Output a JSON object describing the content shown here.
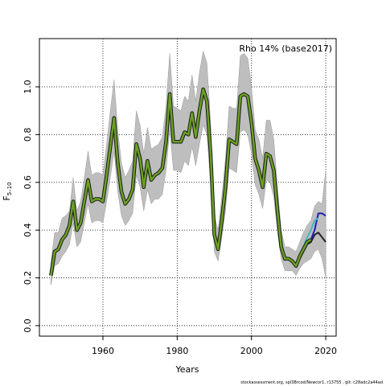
{
  "chart_data": {
    "type": "line",
    "annotation": "Rho 14% (base2017)",
    "xlabel": "Years",
    "ylabel": "F",
    "ylabel_sub": "5–10",
    "footer": "stockassessment.org, spl3Brcod/Newcor1, r13755 , git: c28adc2a44ad",
    "xlim": [
      1942.9,
      2022.8
    ],
    "ylim": [
      -0.044,
      1.202
    ],
    "xticks": [
      1960,
      1980,
      2000,
      2020
    ],
    "yticks": [
      {
        "value": 0,
        "label": "0.0"
      },
      0.2,
      0.4,
      0.6,
      0.8,
      {
        "value": 1,
        "label": "1.0"
      }
    ],
    "grid": true,
    "band_color": "#bebebe",
    "x": [
      1946,
      1947,
      1948,
      1949,
      1950,
      1951,
      1952,
      1953,
      1954,
      1955,
      1956,
      1957,
      1958,
      1959,
      1960,
      1961,
      1962,
      1963,
      1964,
      1965,
      1966,
      1967,
      1968,
      1969,
      1970,
      1971,
      1972,
      1973,
      1974,
      1975,
      1976,
      1977,
      1978,
      1979,
      1980,
      1981,
      1982,
      1983,
      1984,
      1985,
      1986,
      1987,
      1988,
      1989,
      1990,
      1991,
      1992,
      1993,
      1994,
      1995,
      1996,
      1997,
      1998,
      1999,
      2000,
      2001,
      2002,
      2003,
      2004,
      2005,
      2006,
      2007,
      2008,
      2009,
      2010,
      2011,
      2012,
      2013,
      2014,
      2015,
      2016,
      2017,
      2018,
      2019,
      2020
    ],
    "upper": [
      0.26,
      0.39,
      0.39,
      0.45,
      0.46,
      0.48,
      0.62,
      0.48,
      0.52,
      0.62,
      0.73,
      0.63,
      0.64,
      0.64,
      0.63,
      0.76,
      0.9,
      1.03,
      0.82,
      0.68,
      0.62,
      0.65,
      0.69,
      0.9,
      0.84,
      0.72,
      0.83,
      0.74,
      0.75,
      0.76,
      0.79,
      0.92,
      1.14,
      0.92,
      0.91,
      0.9,
      0.96,
      0.94,
      1.05,
      0.94,
      1.06,
      1.15,
      1.1,
      0.85,
      0.46,
      0.4,
      0.54,
      0.7,
      0.92,
      0.91,
      0.91,
      1.13,
      1.14,
      1.12,
      1.0,
      0.82,
      0.78,
      0.7,
      0.86,
      0.86,
      0.78,
      0.58,
      0.4,
      0.33,
      0.33,
      0.32,
      0.31,
      0.35,
      0.39,
      0.42,
      0.44,
      0.5,
      0.52,
      0.51,
      0.65
    ],
    "lower": [
      0.17,
      0.25,
      0.26,
      0.29,
      0.31,
      0.34,
      0.43,
      0.33,
      0.35,
      0.43,
      0.51,
      0.43,
      0.44,
      0.44,
      0.43,
      0.52,
      0.62,
      0.73,
      0.56,
      0.46,
      0.42,
      0.44,
      0.47,
      0.63,
      0.58,
      0.48,
      0.57,
      0.51,
      0.53,
      0.53,
      0.55,
      0.65,
      0.82,
      0.65,
      0.65,
      0.64,
      0.69,
      0.67,
      0.75,
      0.67,
      0.76,
      0.84,
      0.8,
      0.6,
      0.31,
      0.27,
      0.37,
      0.48,
      0.66,
      0.65,
      0.64,
      0.81,
      0.82,
      0.8,
      0.72,
      0.59,
      0.55,
      0.49,
      0.61,
      0.6,
      0.54,
      0.39,
      0.28,
      0.23,
      0.23,
      0.23,
      0.21,
      0.24,
      0.26,
      0.27,
      0.28,
      0.31,
      0.32,
      0.28,
      0.2
    ],
    "series": [
      {
        "color": "#222222",
        "values": [
          0.21,
          0.31,
          0.32,
          0.36,
          0.38,
          0.42,
          0.52,
          0.4,
          0.43,
          0.52,
          0.61,
          0.52,
          0.53,
          0.53,
          0.52,
          0.63,
          0.75,
          0.87,
          0.68,
          0.56,
          0.51,
          0.53,
          0.57,
          0.76,
          0.7,
          0.58,
          0.69,
          0.61,
          0.63,
          0.64,
          0.66,
          0.77,
          0.97,
          0.77,
          0.77,
          0.77,
          0.81,
          0.8,
          0.89,
          0.79,
          0.9,
          0.99,
          0.94,
          0.72,
          0.38,
          0.32,
          0.44,
          0.58,
          0.78,
          0.77,
          0.76,
          0.96,
          0.97,
          0.96,
          0.85,
          0.7,
          0.65,
          0.58,
          0.72,
          0.71,
          0.65,
          0.48,
          0.33,
          0.28,
          0.28,
          0.27,
          0.25,
          0.28,
          0.31,
          0.34,
          0.35,
          0.38,
          0.39,
          0.37,
          0.35
        ]
      },
      {
        "color": "#1f1fb4",
        "x": [
          2008,
          2009,
          2010,
          2011,
          2012,
          2013,
          2014,
          2015,
          2016,
          2017,
          2018,
          2019,
          2020
        ],
        "values": [
          0.33,
          0.28,
          0.28,
          0.27,
          0.25,
          0.29,
          0.32,
          0.35,
          0.36,
          0.4,
          0.47,
          0.47,
          0.46
        ]
      },
      {
        "color": "#41b6c4",
        "x": [
          2008,
          2009,
          2010,
          2011,
          2012,
          2013,
          2014,
          2015,
          2016,
          2017,
          2018
        ],
        "values": [
          0.33,
          0.29,
          0.28,
          0.27,
          0.26,
          0.3,
          0.33,
          0.37,
          0.4,
          0.44,
          0.45
        ]
      },
      {
        "color": "#6aa121",
        "x": [
          1946,
          1947,
          1948,
          1949,
          1950,
          1951,
          1952,
          1953,
          1954,
          1955,
          1956,
          1957,
          1958,
          1959,
          1960,
          1961,
          1962,
          1963,
          1964,
          1965,
          1966,
          1967,
          1968,
          1969,
          1970,
          1971,
          1972,
          1973,
          1974,
          1975,
          1976,
          1977,
          1978,
          1979,
          1980,
          1981,
          1982,
          1983,
          1984,
          1985,
          1986,
          1987,
          1988,
          1989,
          1990,
          1991,
          1992,
          1993,
          1994,
          1995,
          1996,
          1997,
          1998,
          1999,
          2000,
          2001,
          2002,
          2003,
          2004,
          2005,
          2006,
          2007,
          2008,
          2009,
          2010,
          2011,
          2012,
          2013,
          2014,
          2015,
          2016
        ],
        "values": [
          0.21,
          0.31,
          0.32,
          0.36,
          0.38,
          0.42,
          0.52,
          0.4,
          0.43,
          0.52,
          0.61,
          0.52,
          0.53,
          0.53,
          0.52,
          0.63,
          0.75,
          0.87,
          0.68,
          0.56,
          0.51,
          0.53,
          0.57,
          0.76,
          0.7,
          0.58,
          0.69,
          0.61,
          0.63,
          0.64,
          0.66,
          0.77,
          0.97,
          0.77,
          0.77,
          0.77,
          0.81,
          0.8,
          0.89,
          0.79,
          0.9,
          0.99,
          0.94,
          0.72,
          0.38,
          0.32,
          0.44,
          0.58,
          0.78,
          0.77,
          0.76,
          0.96,
          0.97,
          0.96,
          0.85,
          0.7,
          0.65,
          0.58,
          0.72,
          0.71,
          0.65,
          0.48,
          0.33,
          0.28,
          0.28,
          0.27,
          0.25,
          0.29,
          0.32,
          0.35,
          0.36
        ]
      }
    ]
  }
}
